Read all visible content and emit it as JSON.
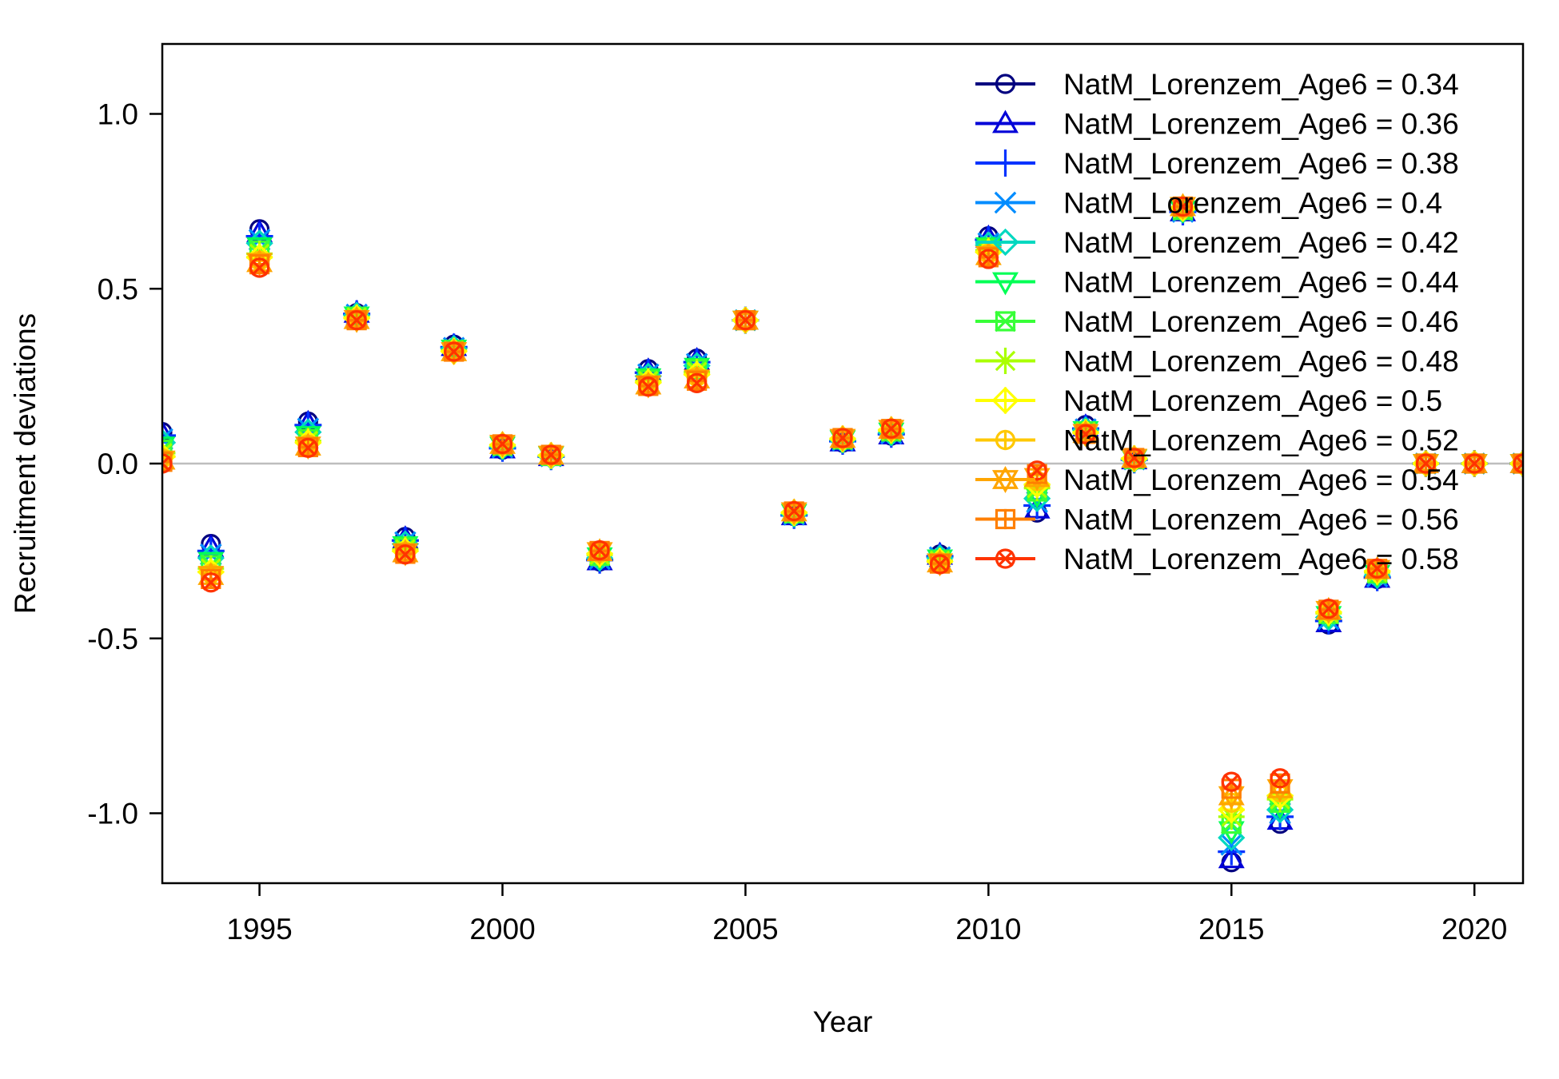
{
  "chart_data": {
    "type": "scatter",
    "title": "",
    "xlabel": "Year",
    "ylabel": "Recruitment deviations",
    "xlim": [
      1993,
      2021
    ],
    "ylim": [
      -1.2,
      1.2
    ],
    "xticks": [
      1995,
      2000,
      2005,
      2010,
      2015,
      2020
    ],
    "yticks": [
      -1.0,
      -0.5,
      0.0,
      0.5,
      1.0
    ],
    "ytick_labels": [
      "-1.0",
      "-0.5",
      "0.0",
      "0.5",
      "1.0"
    ],
    "reference_line_y": 0,
    "reference_line_color": "#bebebe",
    "legend_position": "top-right",
    "x": [
      1993,
      1994,
      1995,
      1996,
      1997,
      1998,
      1999,
      2000,
      2001,
      2002,
      2003,
      2004,
      2005,
      2006,
      2007,
      2008,
      2009,
      2010,
      2011,
      2012,
      2013,
      2014,
      2015,
      2016,
      2017,
      2018,
      2019,
      2020,
      2021
    ],
    "series": [
      {
        "name": "NatM_Lorenzem_Age6 = 0.34",
        "color": "#00007f",
        "marker": "circle",
        "values": [
          0.09,
          -0.23,
          0.67,
          0.12,
          0.43,
          -0.21,
          0.34,
          0.04,
          0.02,
          -0.28,
          0.27,
          0.3,
          0.41,
          -0.15,
          0.06,
          0.08,
          -0.26,
          0.65,
          -0.14,
          0.11,
          0.01,
          0.72,
          -1.14,
          -1.03,
          -0.46,
          -0.33,
          0.0,
          0.0,
          0.0
        ]
      },
      {
        "name": "NatM_Lorenzem_Age6 = 0.36",
        "color": "#0000d8",
        "marker": "triangle",
        "values": [
          0.085,
          -0.24,
          0.66,
          0.115,
          0.43,
          -0.215,
          0.335,
          0.042,
          0.02,
          -0.278,
          0.265,
          0.295,
          0.41,
          -0.149,
          0.062,
          0.082,
          -0.262,
          0.645,
          -0.13,
          0.105,
          0.011,
          0.72,
          -1.13,
          -1.02,
          -0.455,
          -0.328,
          0.0,
          0.0,
          0.0
        ]
      },
      {
        "name": "NatM_Lorenzem_Age6 = 0.38",
        "color": "#0032ff",
        "marker": "plus",
        "values": [
          0.08,
          -0.25,
          0.65,
          0.11,
          0.428,
          -0.22,
          0.333,
          0.044,
          0.02,
          -0.276,
          0.26,
          0.29,
          0.41,
          -0.148,
          0.064,
          0.084,
          -0.265,
          0.64,
          -0.12,
          0.1,
          0.011,
          0.72,
          -1.11,
          -1.01,
          -0.45,
          -0.326,
          0.0,
          0.0,
          0.0
        ]
      },
      {
        "name": "NatM_Lorenzem_Age6 = 0.4",
        "color": "#008cff",
        "marker": "cross",
        "values": [
          0.07,
          -0.26,
          0.64,
          0.1,
          0.426,
          -0.225,
          0.331,
          0.046,
          0.021,
          -0.273,
          0.255,
          0.285,
          0.41,
          -0.146,
          0.066,
          0.086,
          -0.268,
          0.63,
          -0.11,
          0.098,
          0.012,
          0.72,
          -1.09,
          -1.0,
          -0.445,
          -0.323,
          0.0,
          0.0,
          0.0
        ]
      },
      {
        "name": "NatM_Lorenzem_Age6 = 0.42",
        "color": "#00d8c0",
        "marker": "diamond",
        "values": [
          0.06,
          -0.27,
          0.63,
          0.09,
          0.424,
          -0.23,
          0.329,
          0.048,
          0.021,
          -0.27,
          0.25,
          0.28,
          0.41,
          -0.145,
          0.067,
          0.088,
          -0.27,
          0.625,
          -0.1,
          0.096,
          0.012,
          0.725,
          -1.07,
          -0.99,
          -0.44,
          -0.32,
          0.0,
          0.0,
          0.0
        ]
      },
      {
        "name": "NatM_Lorenzem_Age6 = 0.44",
        "color": "#00ff55",
        "marker": "triangle-down",
        "values": [
          0.05,
          -0.28,
          0.62,
          0.08,
          0.422,
          -0.235,
          0.327,
          0.05,
          0.022,
          -0.267,
          0.245,
          0.275,
          0.41,
          -0.143,
          0.068,
          0.09,
          -0.273,
          0.62,
          -0.09,
          0.094,
          0.013,
          0.725,
          -1.05,
          -0.98,
          -0.435,
          -0.317,
          0.0,
          0.0,
          0.0
        ]
      },
      {
        "name": "NatM_Lorenzem_Age6 = 0.46",
        "color": "#38ff38",
        "marker": "square-x",
        "values": [
          0.04,
          -0.29,
          0.61,
          0.07,
          0.42,
          -0.24,
          0.325,
          0.051,
          0.022,
          -0.264,
          0.24,
          0.27,
          0.41,
          -0.142,
          0.069,
          0.092,
          -0.276,
          0.615,
          -0.08,
          0.092,
          0.013,
          0.725,
          -1.03,
          -0.97,
          -0.43,
          -0.314,
          0.0,
          0.0,
          0.0
        ]
      },
      {
        "name": "NatM_Lorenzem_Age6 = 0.48",
        "color": "#aaff00",
        "marker": "star",
        "values": [
          0.03,
          -0.3,
          0.6,
          0.065,
          0.418,
          -0.245,
          0.323,
          0.052,
          0.023,
          -0.261,
          0.236,
          0.262,
          0.41,
          -0.141,
          0.07,
          0.094,
          -0.278,
          0.61,
          -0.07,
          0.09,
          0.014,
          0.73,
          -1.01,
          -0.96,
          -0.428,
          -0.311,
          0.0,
          0.0,
          0.0
        ]
      },
      {
        "name": "NatM_Lorenzem_Age6 = 0.5",
        "color": "#ffff00",
        "marker": "diamond-plus",
        "values": [
          0.02,
          -0.31,
          0.59,
          0.06,
          0.416,
          -0.25,
          0.321,
          0.053,
          0.023,
          -0.258,
          0.232,
          0.255,
          0.41,
          -0.14,
          0.071,
          0.096,
          -0.28,
          0.605,
          -0.06,
          0.088,
          0.014,
          0.73,
          -0.99,
          -0.95,
          -0.425,
          -0.308,
          0.0,
          0.0,
          0.0
        ]
      },
      {
        "name": "NatM_Lorenzem_Age6 = 0.52",
        "color": "#ffc800",
        "marker": "circle-plus",
        "values": [
          0.015,
          -0.315,
          0.58,
          0.055,
          0.414,
          -0.252,
          0.32,
          0.054,
          0.024,
          -0.255,
          0.228,
          0.248,
          0.41,
          -0.139,
          0.072,
          0.097,
          -0.282,
          0.6,
          -0.05,
          0.087,
          0.015,
          0.73,
          -0.97,
          -0.94,
          -0.422,
          -0.305,
          0.0,
          0.0,
          0.0
        ]
      },
      {
        "name": "NatM_Lorenzem_Age6 = 0.54",
        "color": "#ffa500",
        "marker": "star-david",
        "values": [
          0.01,
          -0.32,
          0.575,
          0.05,
          0.412,
          -0.255,
          0.32,
          0.055,
          0.024,
          -0.252,
          0.225,
          0.242,
          0.41,
          -0.138,
          0.072,
          0.098,
          -0.284,
          0.595,
          -0.04,
          0.086,
          0.015,
          0.735,
          -0.95,
          -0.93,
          -0.42,
          -0.303,
          0.0,
          0.0,
          0.0
        ]
      },
      {
        "name": "NatM_Lorenzem_Age6 = 0.56",
        "color": "#ff7f00",
        "marker": "square-plus",
        "values": [
          0.005,
          -0.33,
          0.57,
          0.047,
          0.41,
          -0.258,
          0.32,
          0.055,
          0.025,
          -0.25,
          0.222,
          0.237,
          0.41,
          -0.137,
          0.073,
          0.099,
          -0.286,
          0.59,
          -0.03,
          0.085,
          0.016,
          0.735,
          -0.93,
          -0.915,
          -0.418,
          -0.301,
          0.0,
          0.0,
          0.0
        ]
      },
      {
        "name": "NatM_Lorenzem_Age6 = 0.58",
        "color": "#ff3300",
        "marker": "circle-x",
        "values": [
          0.0,
          -0.34,
          0.56,
          0.045,
          0.41,
          -0.26,
          0.32,
          0.056,
          0.025,
          -0.248,
          0.22,
          0.23,
          0.41,
          -0.136,
          0.073,
          0.1,
          -0.288,
          0.585,
          -0.02,
          0.084,
          0.016,
          0.735,
          -0.91,
          -0.9,
          -0.415,
          -0.3,
          0.0,
          0.0,
          0.0
        ]
      }
    ]
  }
}
